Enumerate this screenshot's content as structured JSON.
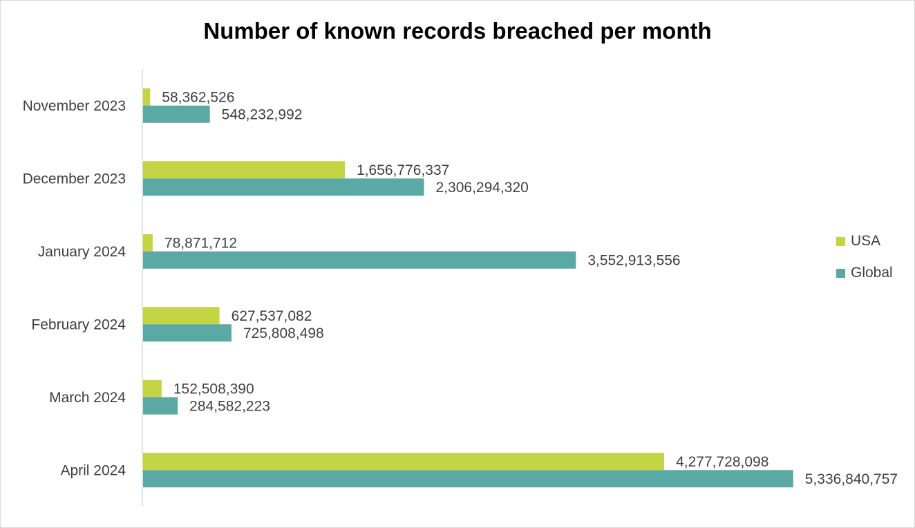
{
  "chart_data": {
    "type": "bar",
    "orientation": "horizontal",
    "title": "Number of known records breached per month",
    "categories": [
      "November 2023",
      "December 2023",
      "January 2024",
      "February 2024",
      "March 2024",
      "April 2024"
    ],
    "series": [
      {
        "name": "USA",
        "color": "#c3d445",
        "values": [
          58362526,
          1656776337,
          78871712,
          627537082,
          152508390,
          4277728098
        ],
        "labels": [
          "58,362,526",
          "1,656,776,337",
          "78,871,712",
          "627,537,082",
          "152,508,390",
          "4,277,728,098"
        ]
      },
      {
        "name": "Global",
        "color": "#5ba9a4",
        "values": [
          548232992,
          2306294320,
          3552913556,
          725808498,
          284582223,
          5336840757
        ],
        "labels": [
          "548,232,992",
          "2,306,294,320",
          "3,552,913,556",
          "725,808,498",
          "284,582,223",
          "5,336,840,757"
        ]
      }
    ],
    "xlabel": "",
    "ylabel": "",
    "xlim": [
      0,
      5650000000
    ],
    "grid": false,
    "legend_position": "right"
  }
}
